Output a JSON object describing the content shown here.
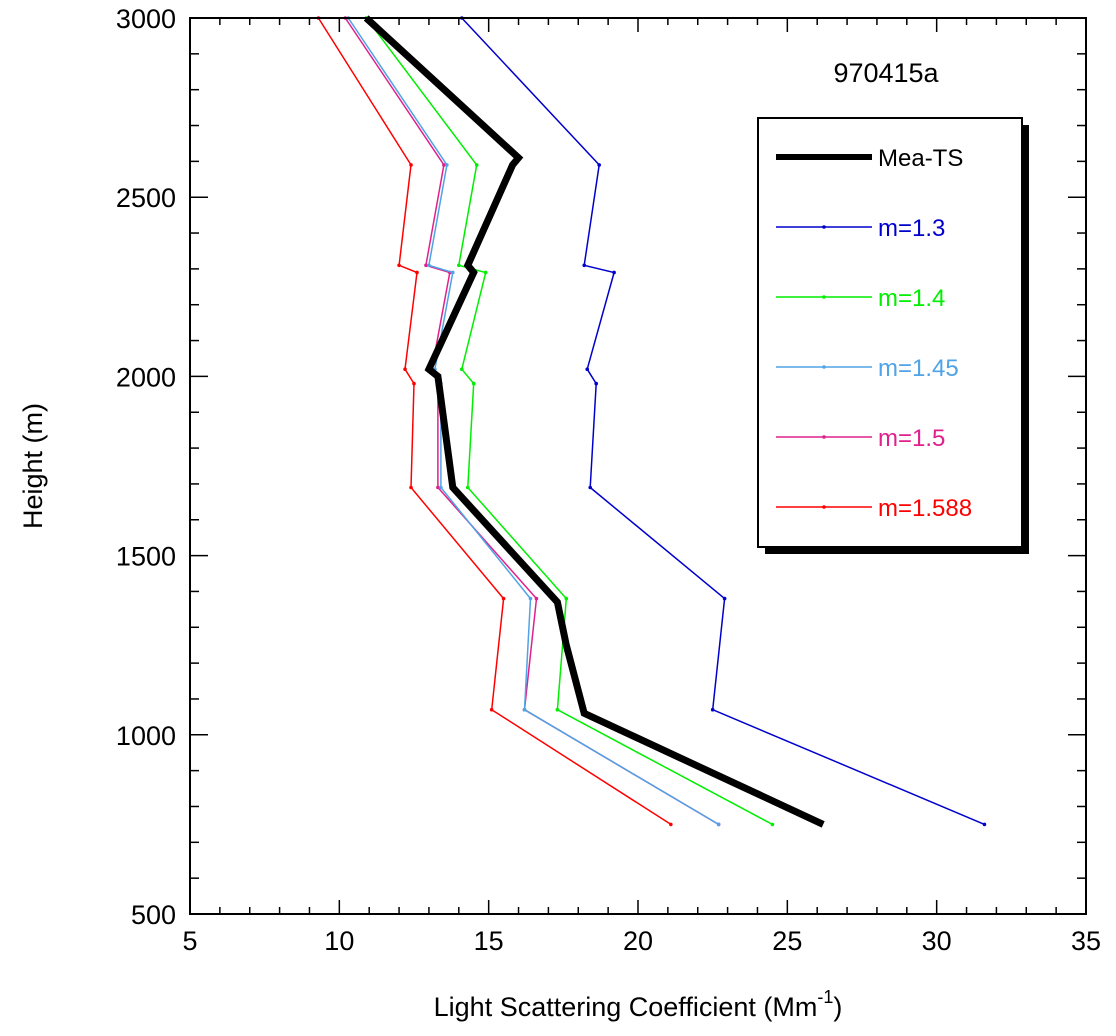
{
  "chart_data": {
    "type": "line",
    "title": "",
    "annotation": "970415a",
    "xlabel": "Light Scattering Coefficient (Mm",
    "xlabel_sup": "-1",
    "xlabel_end": ")",
    "ylabel": "Height (m)",
    "xlim": [
      5,
      35
    ],
    "ylim": [
      500,
      3000
    ],
    "x_ticks": [
      5,
      10,
      15,
      20,
      25,
      30,
      35
    ],
    "y_ticks": [
      500,
      1000,
      1500,
      2000,
      2500,
      3000
    ],
    "grid": false,
    "legend_position": "top-right",
    "series": [
      {
        "name": "Mea-TS",
        "color": "#000000",
        "heavy": true,
        "points": [
          [
            26.2,
            750
          ],
          [
            18.2,
            1060
          ],
          [
            17.6,
            1250
          ],
          [
            17.3,
            1370
          ],
          [
            13.8,
            1690
          ],
          [
            13.3,
            2000
          ],
          [
            13.0,
            2020
          ],
          [
            14.5,
            2290
          ],
          [
            14.3,
            2310
          ],
          [
            15.8,
            2590
          ],
          [
            16.0,
            2610
          ],
          [
            10.9,
            3000
          ]
        ]
      },
      {
        "name": "m=1.3",
        "color": "#0000cc",
        "heavy": false,
        "points": [
          [
            31.6,
            750
          ],
          [
            22.5,
            1070
          ],
          [
            22.9,
            1380
          ],
          [
            18.4,
            1690
          ],
          [
            18.6,
            1980
          ],
          [
            18.3,
            2020
          ],
          [
            19.2,
            2290
          ],
          [
            18.2,
            2310
          ],
          [
            18.7,
            2590
          ],
          [
            14.1,
            3000
          ]
        ]
      },
      {
        "name": "m=1.4",
        "color": "#00ee00",
        "heavy": false,
        "points": [
          [
            24.5,
            750
          ],
          [
            17.3,
            1070
          ],
          [
            17.6,
            1380
          ],
          [
            14.3,
            1690
          ],
          [
            14.5,
            1980
          ],
          [
            14.1,
            2020
          ],
          [
            14.9,
            2290
          ],
          [
            14.0,
            2310
          ],
          [
            14.6,
            2590
          ],
          [
            10.9,
            3000
          ]
        ]
      },
      {
        "name": "m=1.45",
        "color": "#4fa3e6",
        "heavy": false,
        "points": [
          [
            22.7,
            750
          ],
          [
            16.2,
            1070
          ],
          [
            16.4,
            1380
          ],
          [
            13.4,
            1690
          ],
          [
            13.4,
            1980
          ],
          [
            13.2,
            2020
          ],
          [
            13.8,
            2290
          ],
          [
            13.0,
            2310
          ],
          [
            13.6,
            2590
          ],
          [
            10.3,
            3000
          ]
        ]
      },
      {
        "name": "m=1.5",
        "color": "#e0208c",
        "heavy": false,
        "points": [
          [
            22.7,
            750
          ],
          [
            16.2,
            1070
          ],
          [
            16.6,
            1380
          ],
          [
            13.3,
            1690
          ],
          [
            13.3,
            1980
          ],
          [
            13.1,
            2020
          ],
          [
            13.7,
            2290
          ],
          [
            12.9,
            2310
          ],
          [
            13.5,
            2590
          ],
          [
            10.2,
            3000
          ]
        ]
      },
      {
        "name": "m=1.588",
        "color": "#ff0000",
        "heavy": false,
        "points": [
          [
            21.1,
            750
          ],
          [
            15.1,
            1070
          ],
          [
            15.5,
            1380
          ],
          [
            12.4,
            1690
          ],
          [
            12.5,
            1980
          ],
          [
            12.2,
            2020
          ],
          [
            12.6,
            2290
          ],
          [
            12.0,
            2310
          ],
          [
            12.4,
            2590
          ],
          [
            9.3,
            3000
          ]
        ]
      }
    ]
  }
}
